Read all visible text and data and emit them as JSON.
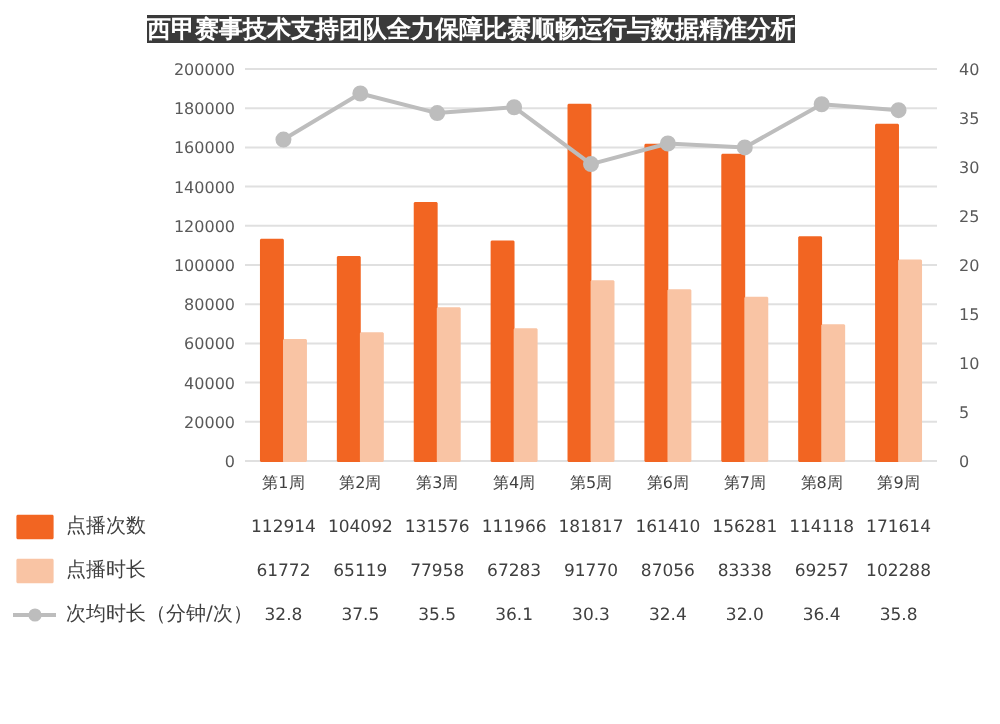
{
  "chart_data": {
    "type": "bar",
    "title": "西甲赛事技术支持团队全力保障比赛顺畅运行与数据精准分析",
    "categories": [
      "第1周",
      "第2周",
      "第3周",
      "第4周",
      "第5周",
      "第6周",
      "第7周",
      "第8周",
      "第9周"
    ],
    "series": [
      {
        "name": "点播次数",
        "color": "#f26522",
        "values": [
          112914,
          104092,
          131576,
          111966,
          181817,
          161410,
          156281,
          114118,
          171614
        ]
      },
      {
        "name": "点播时长",
        "color": "#f9c4a4",
        "values": [
          61772,
          65119,
          77958,
          67283,
          91770,
          87056,
          83338,
          69257,
          102288
        ]
      },
      {
        "name": "次均时长（分钟/次）",
        "type": "line",
        "axis": "y2",
        "color": "#bdbdbd",
        "marker": "circle",
        "values": [
          32.8,
          37.5,
          35.5,
          36.1,
          30.3,
          32.4,
          32.0,
          36.4,
          35.8
        ],
        "value_labels": [
          "32.8",
          "37.5",
          "35.5",
          "36.1",
          "30.3",
          "32.4",
          "32.0",
          "36.4",
          "35.8"
        ]
      }
    ],
    "ylim": [
      0,
      200000
    ],
    "yticks": [
      0,
      20000,
      40000,
      60000,
      80000,
      100000,
      120000,
      140000,
      160000,
      180000,
      200000
    ],
    "y2lim": [
      0,
      40
    ],
    "y2ticks": [
      0,
      5,
      10,
      15,
      20,
      25,
      30,
      35,
      40
    ],
    "grid": "y",
    "legend": "bottom",
    "data_labels": true
  }
}
